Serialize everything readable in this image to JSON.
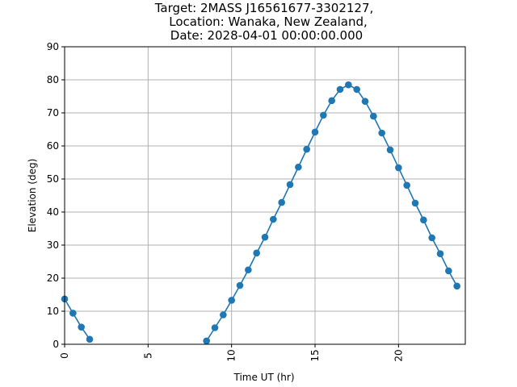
{
  "chart_data": {
    "type": "line",
    "title_lines": [
      "Target: 2MASS J16561677-3302127,",
      "Location: Wanaka, New Zealand,",
      "Date: 2028-04-01 00:00:00.000"
    ],
    "xlabel": "Time UT (hr)",
    "ylabel": "Elevation (deg)",
    "xlim": [
      0,
      24
    ],
    "ylim": [
      0,
      90
    ],
    "x_ticks": [
      0,
      5,
      10,
      15,
      20
    ],
    "y_ticks": [
      0,
      10,
      20,
      30,
      40,
      50,
      60,
      70,
      80,
      90
    ],
    "grid": true,
    "color": "#1f77b4",
    "series": [
      {
        "segments": [
          {
            "x": [
              0,
              0.5,
              1.0,
              1.5
            ],
            "y": [
              13.7,
              9.4,
              5.2,
              1.5
            ]
          },
          {
            "x": [
              8.5,
              9.0,
              9.5,
              10.0,
              10.5,
              11.0,
              11.5,
              12.0,
              12.5,
              13.0,
              13.5,
              14.0,
              14.5,
              15.0,
              15.5,
              16.0,
              16.5,
              17.0,
              17.5,
              18.0,
              18.5,
              19.0,
              19.5,
              20.0,
              20.5,
              21.0,
              21.5,
              22.0,
              22.5,
              23.0,
              23.5
            ],
            "y": [
              1.0,
              5.0,
              8.9,
              13.3,
              17.8,
              22.5,
              27.6,
              32.4,
              37.8,
              42.9,
              48.3,
              53.6,
              59.0,
              64.2,
              69.3,
              73.7,
              77.1,
              78.5,
              77.1,
              73.5,
              69.0,
              63.9,
              58.8,
              53.4,
              48.1,
              42.7,
              37.6,
              32.2,
              27.4,
              22.2,
              17.6
            ]
          }
        ]
      }
    ]
  }
}
